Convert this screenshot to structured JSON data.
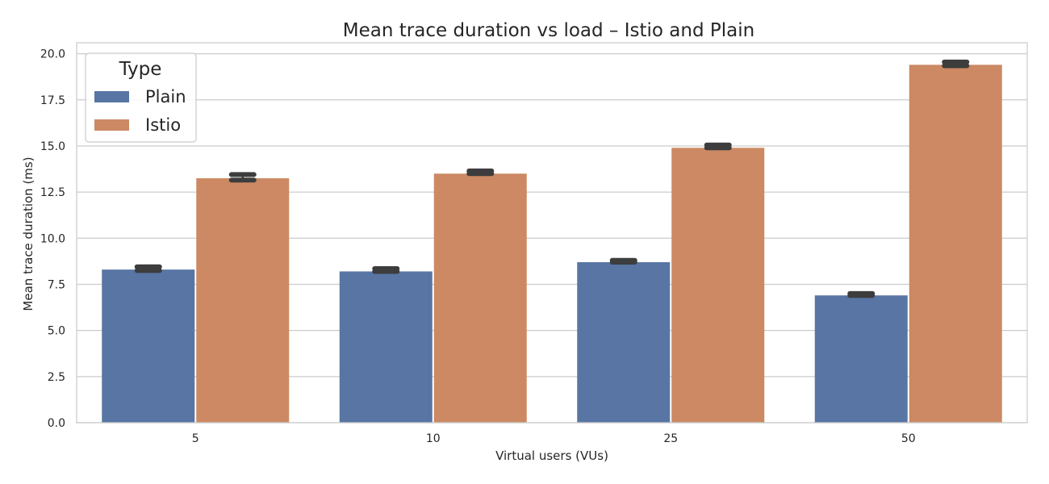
{
  "colors": {
    "plain": "#5875a4",
    "istio": "#cc8963",
    "grid": "#cccccc",
    "errorbar": "#3d3d3d",
    "frame": "#cccccc"
  },
  "chart_data": {
    "type": "bar",
    "title": "Mean trace duration vs load – Istio and Plain",
    "xlabel": "Virtual users (VUs)",
    "ylabel": "Mean trace duration (ms)",
    "categories": [
      "5",
      "10",
      "25",
      "50"
    ],
    "ylim": [
      0,
      20.5
    ],
    "yticks": [
      0,
      2.5,
      5,
      7.5,
      10,
      12.5,
      15,
      17.5,
      20
    ],
    "ytick_labels": [
      "0.0",
      "2.5",
      "5.0",
      "7.5",
      "10.0",
      "12.5",
      "15.0",
      "17.5",
      "20.0"
    ],
    "grid": true,
    "legend": {
      "title": "Type",
      "position": "top-left"
    },
    "series": [
      {
        "name": "Plain",
        "color": "#5875a4",
        "values": [
          8.3,
          8.2,
          8.7,
          6.9
        ],
        "error_low": [
          8.25,
          8.2,
          8.7,
          6.9
        ],
        "error_high": [
          8.45,
          8.35,
          8.8,
          7.0
        ]
      },
      {
        "name": "Istio",
        "color": "#cc8963",
        "values": [
          13.25,
          13.5,
          14.9,
          19.4
        ],
        "error_low": [
          13.15,
          13.5,
          14.9,
          19.35
        ],
        "error_high": [
          13.45,
          13.65,
          15.05,
          19.55
        ]
      }
    ]
  }
}
